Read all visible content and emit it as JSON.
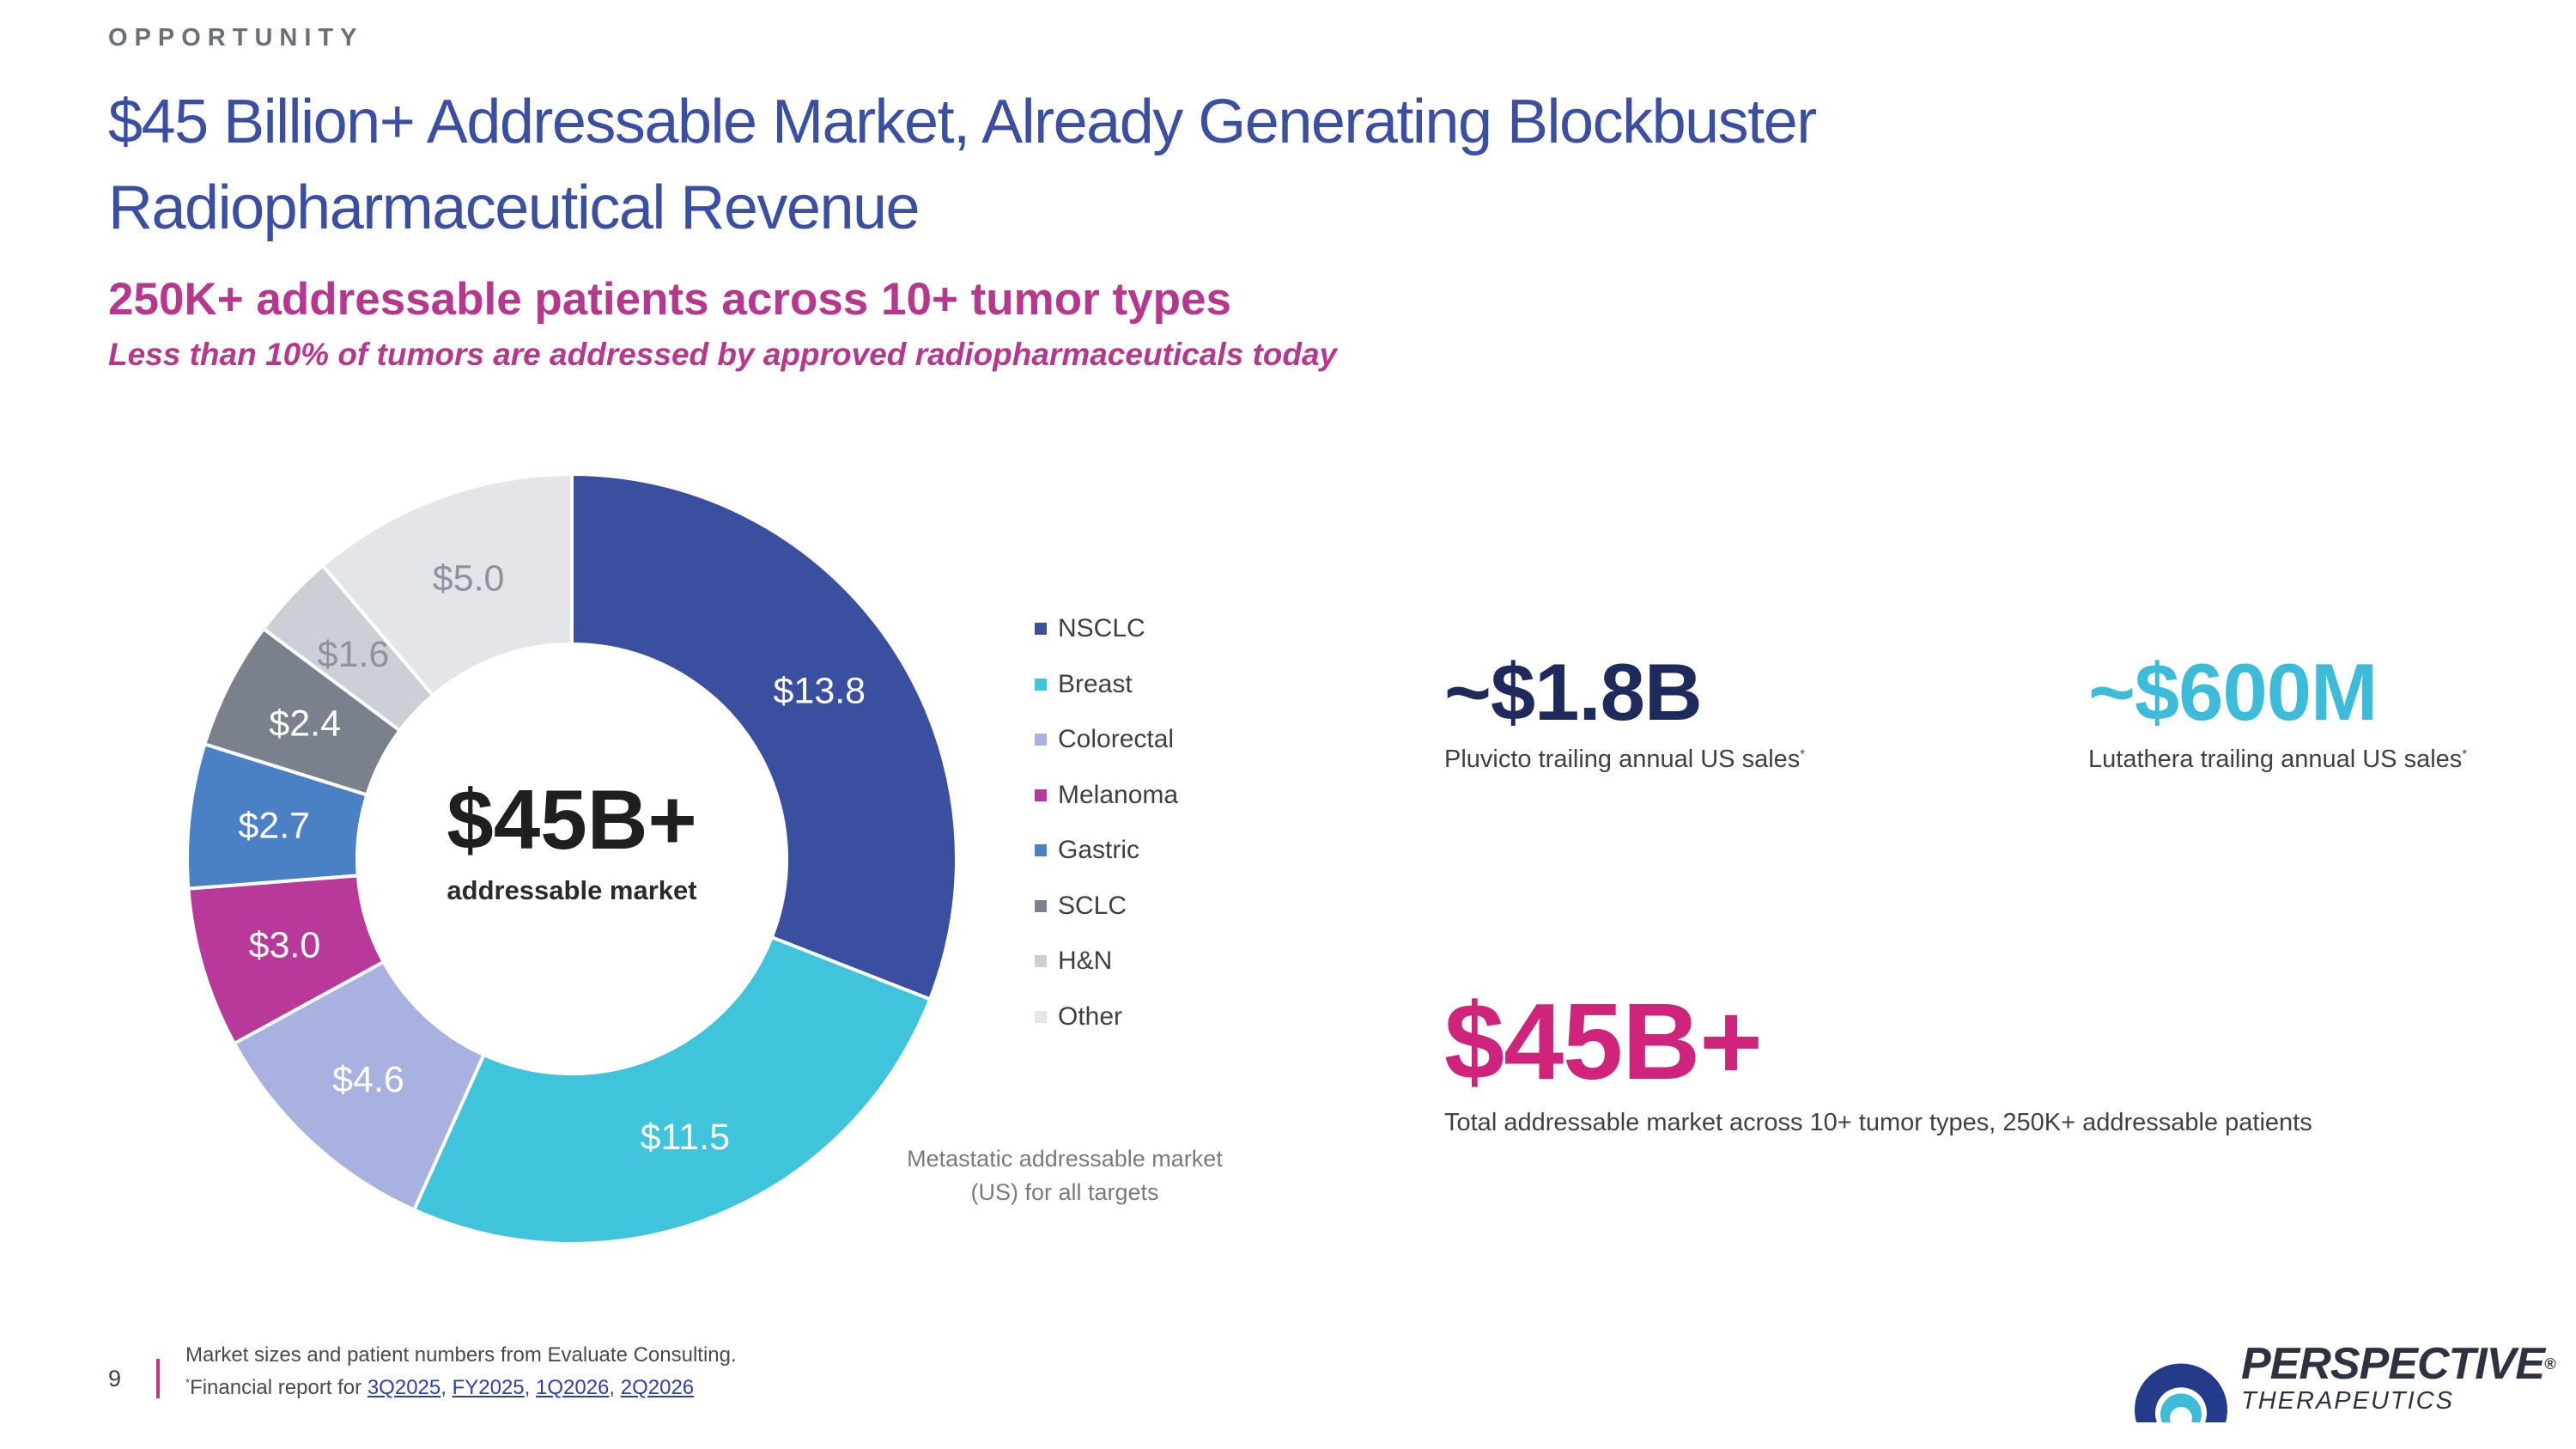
{
  "header": {
    "kicker": "OPPORTUNITY",
    "title": "$45 Billion+ Addressable Market, Already Generating Blockbuster Radiopharmaceutical Revenue",
    "subhead": "250K+ addressable patients across 10+ tumor types",
    "subline": "Less than 10% of tumors are addressed by approved radiopharmaceuticals today"
  },
  "chart_data": {
    "type": "pie",
    "categories": [
      "NSCLC",
      "Breast",
      "Colorectal",
      "Melanoma",
      "Gastric",
      "SCLC",
      "H&N",
      "Other"
    ],
    "values": [
      13.8,
      11.5,
      4.6,
      3.0,
      2.7,
      2.4,
      1.6,
      5.0
    ],
    "data_labels": [
      "$13.8",
      "$11.5",
      "$4.6",
      "$3.0",
      "$2.7",
      "$2.4",
      "$1.6",
      "$5.0"
    ],
    "colors": [
      "#3b4fa0",
      "#3fc4dc",
      "#a9b1e0",
      "#b8399a",
      "#4a80c4",
      "#7a808c",
      "#cbcfd6",
      "#e3e5e9"
    ],
    "label_colors": [
      "#ffffff",
      "#ffffff",
      "#ffffff",
      "#ffffff",
      "#ffffff",
      "#ffffff",
      "#8c92a0",
      "#8c92a0"
    ],
    "center_value": "$45B+",
    "center_label": "addressable market",
    "legend_position": "right",
    "note": "Metastatic addressable market (US) for all targets"
  },
  "stats": [
    {
      "value": "~$1.8B",
      "desc": "Pluvicto trailing annual US sales",
      "mark": "*"
    },
    {
      "value": "~$600M",
      "desc": "Lutathera trailing annual US sales",
      "mark": "*"
    },
    {
      "value": "$45B+",
      "desc": "Total addressable market across 10+ tumor types, 250K+ addressable patients"
    }
  ],
  "footer": {
    "page_number": "9",
    "source_note": "Market sizes and patient numbers from Evaluate Consulting.",
    "financial_mark": "*",
    "financial_prefix": "Financial report for ",
    "links": [
      "3Q2025",
      "FY2025",
      "1Q2026",
      "2Q2026"
    ]
  },
  "logo": {
    "name": "PERSPECTIVE",
    "registered": "®",
    "sub": "THERAPEUTICS",
    "colors": {
      "outer": "#243a8a",
      "inner": "#3cbcd8"
    }
  }
}
